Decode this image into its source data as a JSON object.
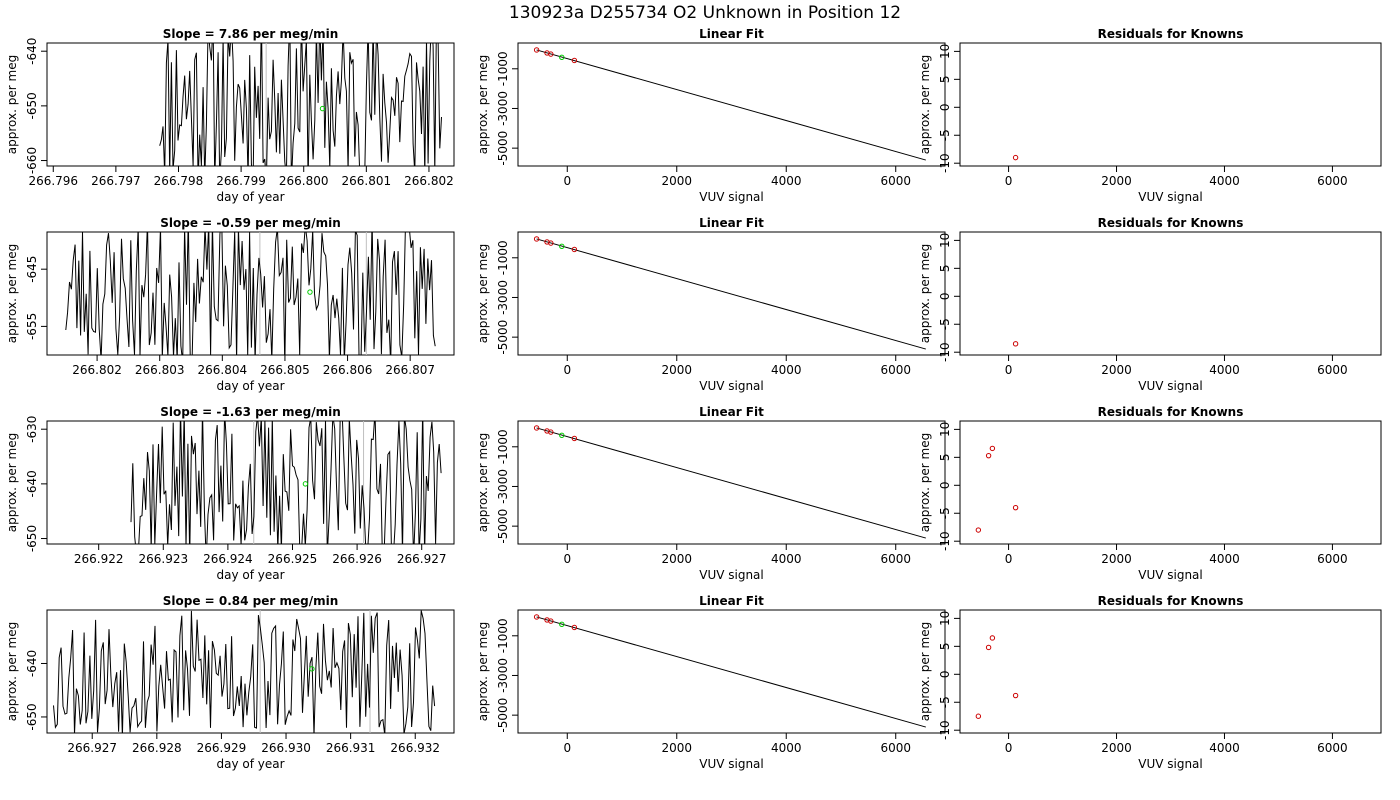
{
  "figure": {
    "title": "130923a      D255734    O2 Unknown in Position  12"
  },
  "chart_data": [
    {
      "row": 0,
      "col": 0,
      "type": "line",
      "title": "Slope =  7.86  per meg/min",
      "xlabel": "day of year",
      "ylabel": "approx. per meg",
      "xlim": [
        266.7959,
        266.8024
      ],
      "ylim": [
        -661,
        -638.5
      ],
      "xticks": [
        266.796,
        266.797,
        266.798,
        266.799,
        266.8,
        266.801,
        266.802
      ],
      "xtick_labels": [
        "266.796",
        "266.797",
        "266.798",
        "266.799",
        "266.800",
        "266.801",
        "266.802"
      ],
      "yticks": [
        -640,
        -650,
        -660
      ],
      "ytick_labels": [
        "-640",
        "-650",
        "-660"
      ],
      "x_start": 266.7977,
      "x_end": 266.8022,
      "n_points": 170,
      "noise_center": -649,
      "noise_amp": 16,
      "seed": 11,
      "vlines": [
        266.7994
      ],
      "green_point": {
        "x": 266.8003,
        "y": -650.5
      }
    },
    {
      "row": 0,
      "col": 1,
      "type": "scatter",
      "title": "Linear Fit",
      "xlabel": "VUV signal",
      "ylabel": "approx. per meg",
      "xlim": [
        -900,
        6900
      ],
      "ylim": [
        -5900,
        300
      ],
      "xticks": [
        0,
        2000,
        4000,
        6000
      ],
      "xtick_labels": [
        "0",
        "2000",
        "4000",
        "6000"
      ],
      "yticks": [
        -1000,
        -3000,
        -5000
      ],
      "ytick_labels": [
        "-1000",
        "-3000",
        "-5000"
      ],
      "fit_line": [
        [
          -560,
          -50
        ],
        [
          6550,
          -5600
        ]
      ],
      "red_points": [
        [
          -560,
          -50
        ],
        [
          -370,
          -200
        ],
        [
          -300,
          -260
        ],
        [
          130,
          -580
        ]
      ],
      "green_points": [
        [
          -100,
          -420
        ]
      ]
    },
    {
      "row": 0,
      "col": 2,
      "type": "scatter",
      "title": "Residuals for Knowns",
      "xlabel": "VUV signal",
      "ylabel": "approx. per meg",
      "xlim": [
        -900,
        6900
      ],
      "ylim": [
        -10.5,
        11.5
      ],
      "xticks": [
        0,
        2000,
        4000,
        6000
      ],
      "xtick_labels": [
        "0",
        "2000",
        "4000",
        "6000"
      ],
      "yticks": [
        10,
        5,
        0,
        -5,
        -10
      ],
      "ytick_labels": [
        "10",
        "5",
        "0",
        "-5",
        "-10"
      ],
      "red_points": [
        [
          130,
          -9
        ]
      ]
    },
    {
      "row": 1,
      "col": 0,
      "type": "line",
      "title": "Slope =  -0.59  per meg/min",
      "xlabel": "day of year",
      "ylabel": "approx. per meg",
      "xlim": [
        266.8012,
        266.8077
      ],
      "ylim": [
        -660,
        -638.5
      ],
      "xticks": [
        266.802,
        266.803,
        266.804,
        266.805,
        266.806,
        266.807
      ],
      "xtick_labels": [
        "266.802",
        "266.803",
        "266.804",
        "266.805",
        "266.806",
        "266.807"
      ],
      "yticks": [
        -645,
        -655
      ],
      "ytick_labels": [
        "-645",
        "-655"
      ],
      "x_start": 266.8015,
      "x_end": 266.8074,
      "n_points": 200,
      "noise_center": -649,
      "noise_amp": 13,
      "seed": 23,
      "vlines": [
        266.8046,
        266.8063
      ],
      "green_point": {
        "x": 266.8054,
        "y": -649
      }
    },
    {
      "row": 1,
      "col": 1,
      "type": "scatter",
      "title": "Linear Fit",
      "xlabel": "VUV signal",
      "ylabel": "approx. per meg",
      "xlim": [
        -900,
        6900
      ],
      "ylim": [
        -5900,
        300
      ],
      "xticks": [
        0,
        2000,
        4000,
        6000
      ],
      "xtick_labels": [
        "0",
        "2000",
        "4000",
        "6000"
      ],
      "yticks": [
        -1000,
        -3000,
        -5000
      ],
      "ytick_labels": [
        "-1000",
        "-3000",
        "-5000"
      ],
      "fit_line": [
        [
          -560,
          -50
        ],
        [
          6550,
          -5600
        ]
      ],
      "red_points": [
        [
          -560,
          -50
        ],
        [
          -370,
          -200
        ],
        [
          -300,
          -260
        ],
        [
          130,
          -580
        ]
      ],
      "green_points": [
        [
          -100,
          -420
        ]
      ]
    },
    {
      "row": 1,
      "col": 2,
      "type": "scatter",
      "title": "Residuals for Knowns",
      "xlabel": "VUV signal",
      "ylabel": "approx. per meg",
      "xlim": [
        -900,
        6900
      ],
      "ylim": [
        -10.5,
        11.5
      ],
      "xticks": [
        0,
        2000,
        4000,
        6000
      ],
      "xtick_labels": [
        "0",
        "2000",
        "4000",
        "6000"
      ],
      "yticks": [
        10,
        5,
        0,
        -5,
        -10
      ],
      "ytick_labels": [
        "10",
        "5",
        "0",
        "-5",
        "-10"
      ],
      "red_points": [
        [
          130,
          -8.5
        ]
      ]
    },
    {
      "row": 2,
      "col": 0,
      "type": "line",
      "title": "Slope =  -1.63  per meg/min",
      "xlabel": "day of year",
      "ylabel": "approx. per meg",
      "xlim": [
        266.9212,
        266.9275
      ],
      "ylim": [
        -651,
        -628.5
      ],
      "xticks": [
        266.922,
        266.923,
        266.924,
        266.925,
        266.926,
        266.927
      ],
      "xtick_labels": [
        "266.922",
        "266.923",
        "266.924",
        "266.925",
        "266.926",
        "266.927"
      ],
      "yticks": [
        -630,
        -640,
        -650
      ],
      "ytick_labels": [
        "-630",
        "-640",
        "-650"
      ],
      "x_start": 266.9225,
      "x_end": 266.9273,
      "n_points": 170,
      "noise_center": -640,
      "noise_amp": 14,
      "seed": 37,
      "vlines": [
        266.9244,
        266.9261
      ],
      "green_point": {
        "x": 266.9252,
        "y": -640
      }
    },
    {
      "row": 2,
      "col": 1,
      "type": "scatter",
      "title": "Linear Fit",
      "xlabel": "VUV signal",
      "ylabel": "approx. per meg",
      "xlim": [
        -900,
        6900
      ],
      "ylim": [
        -5900,
        300
      ],
      "xticks": [
        0,
        2000,
        4000,
        6000
      ],
      "xtick_labels": [
        "0",
        "2000",
        "4000",
        "6000"
      ],
      "yticks": [
        -1000,
        -3000,
        -5000
      ],
      "ytick_labels": [
        "-1000",
        "-3000",
        "-5000"
      ],
      "fit_line": [
        [
          -560,
          -50
        ],
        [
          6550,
          -5600
        ]
      ],
      "red_points": [
        [
          -560,
          -50
        ],
        [
          -370,
          -200
        ],
        [
          -300,
          -260
        ],
        [
          130,
          -580
        ]
      ],
      "green_points": [
        [
          -100,
          -420
        ]
      ]
    },
    {
      "row": 2,
      "col": 2,
      "type": "scatter",
      "title": "Residuals for Knowns",
      "xlabel": "VUV signal",
      "ylabel": "approx. per meg",
      "xlim": [
        -900,
        6900
      ],
      "ylim": [
        -10.5,
        11.5
      ],
      "xticks": [
        0,
        2000,
        4000,
        6000
      ],
      "xtick_labels": [
        "0",
        "2000",
        "4000",
        "6000"
      ],
      "yticks": [
        10,
        5,
        0,
        -5,
        -10
      ],
      "ytick_labels": [
        "10",
        "5",
        "0",
        "-5",
        "-10"
      ],
      "red_points": [
        [
          -560,
          -8
        ],
        [
          -370,
          5.3
        ],
        [
          -300,
          6.6
        ],
        [
          130,
          -4
        ]
      ]
    },
    {
      "row": 3,
      "col": 0,
      "type": "line",
      "title": "Slope =  0.84  per meg/min",
      "xlabel": "day of year",
      "ylabel": "approx. per meg",
      "xlim": [
        266.9263,
        266.9326
      ],
      "ylim": [
        -653,
        -630
      ],
      "xticks": [
        266.927,
        266.928,
        266.929,
        266.93,
        266.931,
        266.932
      ],
      "xtick_labels": [
        "266.927",
        "266.928",
        "266.929",
        "266.930",
        "266.931",
        "266.932"
      ],
      "yticks": [
        -640,
        -650
      ],
      "ytick_labels": [
        "-640",
        "-650"
      ],
      "x_start": 266.9264,
      "x_end": 266.9323,
      "n_points": 200,
      "noise_center": -642,
      "noise_amp": 12,
      "seed": 53,
      "vlines": [
        266.9296,
        266.9313
      ],
      "green_point": {
        "x": 266.9304,
        "y": -641
      }
    },
    {
      "row": 3,
      "col": 1,
      "type": "scatter",
      "title": "Linear Fit",
      "xlabel": "VUV signal",
      "ylabel": "approx. per meg",
      "xlim": [
        -900,
        6900
      ],
      "ylim": [
        -5900,
        300
      ],
      "xticks": [
        0,
        2000,
        4000,
        6000
      ],
      "xtick_labels": [
        "0",
        "2000",
        "4000",
        "6000"
      ],
      "yticks": [
        -1000,
        -3000,
        -5000
      ],
      "ytick_labels": [
        "-1000",
        "-3000",
        "-5000"
      ],
      "fit_line": [
        [
          -560,
          -50
        ],
        [
          6550,
          -5600
        ]
      ],
      "red_points": [
        [
          -560,
          -50
        ],
        [
          -370,
          -200
        ],
        [
          -300,
          -260
        ],
        [
          130,
          -580
        ]
      ],
      "green_points": [
        [
          -100,
          -420
        ]
      ]
    },
    {
      "row": 3,
      "col": 2,
      "type": "scatter",
      "title": "Residuals for Knowns",
      "xlabel": "VUV signal",
      "ylabel": "approx. per meg",
      "xlim": [
        -900,
        6900
      ],
      "ylim": [
        -10.5,
        11.5
      ],
      "xticks": [
        0,
        2000,
        4000,
        6000
      ],
      "xtick_labels": [
        "0",
        "2000",
        "4000",
        "6000"
      ],
      "yticks": [
        10,
        5,
        0,
        -5,
        -10
      ],
      "ytick_labels": [
        "10",
        "5",
        "0",
        "-5",
        "-10"
      ],
      "red_points": [
        [
          -560,
          -7.5
        ],
        [
          -370,
          4.8
        ],
        [
          -300,
          6.5
        ],
        [
          130,
          -3.8
        ]
      ]
    }
  ],
  "colors": {
    "line": "#000000",
    "red_point": "#cc0000",
    "green_point": "#00cc00",
    "vline": "#bfbfbf",
    "axes": "#000000"
  }
}
